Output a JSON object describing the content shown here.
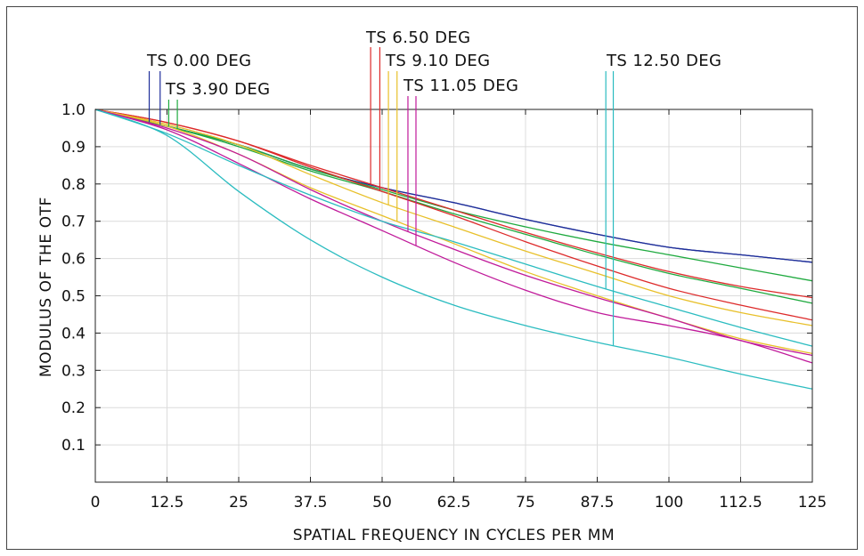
{
  "chart_data": {
    "type": "line",
    "xlabel": "SPATIAL FREQUENCY IN CYCLES PER MM",
    "ylabel": "MODULUS OF THE OTF",
    "xlim": [
      0,
      125
    ],
    "ylim": [
      0,
      1.0
    ],
    "x_ticks": [
      "0",
      "12.5",
      "25",
      "37.5",
      "50",
      "62.5",
      "75",
      "87.5",
      "100",
      "112.5",
      "125"
    ],
    "y_ticks": [
      "1.0",
      "0.9",
      "0.8",
      "0.7",
      "0.6",
      "0.5",
      "0.4",
      "0.3",
      "0.2",
      "0.1"
    ],
    "grid": true,
    "x": [
      0,
      12.5,
      25,
      37.5,
      50,
      62.5,
      75,
      87.5,
      100,
      112.5,
      125
    ],
    "series": [
      {
        "color": "#1f2f9a",
        "values": [
          1.0,
          0.955,
          0.905,
          0.84,
          0.79,
          0.75,
          0.705,
          0.665,
          0.63,
          0.61,
          0.59
        ]
      },
      {
        "color": "#1f2f9a",
        "values": [
          1.0,
          0.955,
          0.905,
          0.84,
          0.79,
          0.75,
          0.705,
          0.665,
          0.63,
          0.61,
          0.59
        ]
      },
      {
        "color": "#1faa3f",
        "values": [
          1.0,
          0.955,
          0.905,
          0.84,
          0.785,
          0.73,
          0.685,
          0.645,
          0.61,
          0.575,
          0.54
        ]
      },
      {
        "color": "#1faa3f",
        "values": [
          1.0,
          0.955,
          0.9,
          0.835,
          0.78,
          0.72,
          0.665,
          0.61,
          0.56,
          0.52,
          0.48
        ]
      },
      {
        "color": "#dd2a2a",
        "values": [
          1.0,
          0.965,
          0.915,
          0.85,
          0.79,
          0.73,
          0.67,
          0.615,
          0.565,
          0.525,
          0.495
        ]
      },
      {
        "color": "#dd2a2a",
        "values": [
          1.0,
          0.965,
          0.915,
          0.845,
          0.78,
          0.715,
          0.645,
          0.58,
          0.52,
          0.475,
          0.435
        ]
      },
      {
        "color": "#e8c02a",
        "values": [
          1.0,
          0.96,
          0.905,
          0.825,
          0.75,
          0.685,
          0.62,
          0.56,
          0.5,
          0.455,
          0.42
        ]
      },
      {
        "color": "#e8c02a",
        "values": [
          1.0,
          0.955,
          0.88,
          0.79,
          0.715,
          0.64,
          0.565,
          0.5,
          0.44,
          0.385,
          0.345
        ]
      },
      {
        "color": "#c01a9a",
        "values": [
          1.0,
          0.95,
          0.88,
          0.785,
          0.7,
          0.625,
          0.555,
          0.495,
          0.44,
          0.38,
          0.34
        ]
      },
      {
        "color": "#c01a9a",
        "values": [
          1.0,
          0.945,
          0.855,
          0.76,
          0.675,
          0.59,
          0.515,
          0.455,
          0.42,
          0.38,
          0.32
        ]
      },
      {
        "color": "#2bbcc0",
        "values": [
          1.0,
          0.935,
          0.85,
          0.77,
          0.7,
          0.645,
          0.585,
          0.525,
          0.47,
          0.415,
          0.365
        ]
      },
      {
        "color": "#2bbcc0",
        "values": [
          1.0,
          0.93,
          0.78,
          0.65,
          0.55,
          0.475,
          0.42,
          0.375,
          0.335,
          0.29,
          0.25
        ]
      }
    ],
    "annotations": [
      {
        "text": "TS  0.00  DEG",
        "field_x": [
          9.4,
          11.3
        ],
        "color": "#1f2f9a"
      },
      {
        "text": "TS  3.90  DEG",
        "field_x": [
          12.8,
          14.3
        ],
        "color": "#1faa3f"
      },
      {
        "text": "TS  6.50  DEG",
        "field_x": [
          48.0,
          49.6
        ],
        "color": "#dd2a2a"
      },
      {
        "text": "TS  9.10  DEG",
        "field_x": [
          51.1,
          52.6
        ],
        "color": "#e8c02a"
      },
      {
        "text": "TS  11.05  DEG",
        "field_x": [
          54.5,
          55.9
        ],
        "color": "#c01a9a"
      },
      {
        "text": "TS  12.50  DEG",
        "field_x": [
          89.0,
          90.3
        ],
        "color": "#2bbcc0"
      }
    ]
  }
}
